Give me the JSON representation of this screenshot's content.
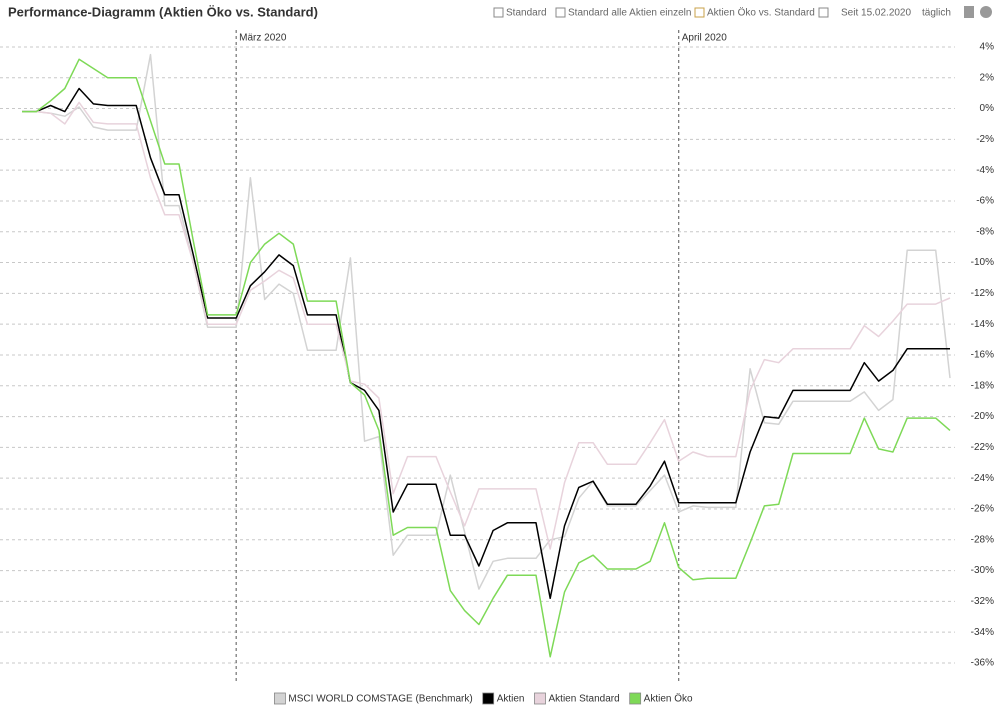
{
  "toolbar": {
    "items": [
      "Standard",
      "Standard alle Aktien einzeln",
      "Aktien Öko vs. Standard",
      "Seit 15.02.2020",
      "täglich"
    ]
  },
  "chart_data": {
    "type": "line",
    "title": "Performance-Diagramm (Aktien Öko vs. Standard)",
    "categories": [
      null,
      null,
      null,
      null,
      null,
      null,
      null,
      null,
      null,
      null,
      null,
      null,
      null,
      null,
      null,
      "März 2020",
      null,
      null,
      null,
      null,
      null,
      null,
      null,
      null,
      null,
      null,
      null,
      null,
      null,
      null,
      null,
      null,
      null,
      null,
      null,
      null,
      null,
      null,
      null,
      null,
      null,
      null,
      null,
      null,
      null,
      null,
      "April 2020",
      null,
      null,
      null,
      null,
      null,
      null,
      null,
      null,
      null,
      null,
      null,
      null,
      null,
      null,
      null,
      null,
      null,
      null,
      null
    ],
    "ylim": [
      -37.3,
      5.1
    ],
    "yticks": [
      {
        "value": 4,
        "label": "4%"
      },
      {
        "value": 2,
        "label": "2%"
      },
      {
        "value": 0,
        "label": "0%"
      },
      {
        "value": -2,
        "label": "-2%"
      },
      {
        "value": -4,
        "label": "-4%"
      },
      {
        "value": -6,
        "label": "-6%"
      },
      {
        "value": -8,
        "label": "-8%"
      },
      {
        "value": -10,
        "label": "-10%"
      },
      {
        "value": -12,
        "label": "-12%"
      },
      {
        "value": -14,
        "label": "-14%"
      },
      {
        "value": -16,
        "label": "-16%"
      },
      {
        "value": -18,
        "label": "-18%"
      },
      {
        "value": -20,
        "label": "-20%"
      },
      {
        "value": -22,
        "label": "-22%"
      },
      {
        "value": -24,
        "label": "-24%"
      },
      {
        "value": -26,
        "label": "-26%"
      },
      {
        "value": -28,
        "label": "-28%"
      },
      {
        "value": -30,
        "label": "-30%"
      },
      {
        "value": -32,
        "label": "-32%"
      },
      {
        "value": -34,
        "label": "-34%"
      },
      {
        "value": -36,
        "label": "-36%"
      }
    ],
    "grid": true,
    "series": [
      {
        "name": "MSCI WORLD COMSTAGE (Benchmark)",
        "color": "#d3d3d3",
        "values": [
          -0.2,
          -0.2,
          -0.3,
          -0.5,
          0.1,
          -1.2,
          -1.4,
          -1.4,
          -1.4,
          3.5,
          -6.3,
          -6.3,
          -10,
          -14.2,
          -14.2,
          -14.2,
          -4.5,
          -12.4,
          -11.4,
          -12.0,
          -15.7,
          -15.7,
          -15.7,
          -9.7,
          -21.6,
          -21.3,
          -29.0,
          -27.7,
          -27.7,
          -27.7,
          -23.8,
          -27.5,
          -31.2,
          -29.4,
          -29.2,
          -29.2,
          -29.2,
          -28.0,
          -27.8,
          -25.3,
          -24.2,
          -25.8,
          -25.8,
          -25.8,
          -24.8,
          -23.8,
          -26.2,
          -25.8,
          -25.9,
          -25.9,
          -25.9,
          -16.9,
          -20.4,
          -20.5,
          -19.0,
          -19.0,
          -19.0,
          -19.0,
          -19.0,
          -18.4,
          -19.6,
          -18.9,
          -9.2,
          -9.2,
          -9.2,
          -17.5
        ]
      },
      {
        "name": "Aktien",
        "color": "#000000",
        "values": [
          -0.2,
          -0.2,
          0.2,
          -0.2,
          1.3,
          0.3,
          0.2,
          0.2,
          0.2,
          -3.2,
          -5.6,
          -5.6,
          -9.5,
          -13.6,
          -13.6,
          -13.6,
          -11.5,
          -10.6,
          -9.5,
          -10.2,
          -13.4,
          -13.4,
          -13.4,
          -17.8,
          -18.3,
          -19.6,
          -26.2,
          -24.4,
          -24.4,
          -24.4,
          -27.7,
          -27.7,
          -29.7,
          -27.4,
          -26.9,
          -26.9,
          -26.9,
          -31.8,
          -27.1,
          -24.6,
          -24.2,
          -25.7,
          -25.7,
          -25.7,
          -24.5,
          -22.9,
          -25.6,
          -25.6,
          -25.6,
          -25.6,
          -25.6,
          -22.3,
          -20.0,
          -20.1,
          -18.3,
          -18.3,
          -18.3,
          -18.3,
          -18.3,
          -16.5,
          -17.7,
          -17.0,
          -15.6,
          -15.6,
          -15.6,
          -15.6
        ]
      },
      {
        "name": "Aktien Standard",
        "color": "#e8d3dc",
        "values": [
          -0.2,
          -0.2,
          -0.3,
          -1.0,
          0.4,
          -0.9,
          -1.0,
          -1.0,
          -1.0,
          -4.5,
          -6.9,
          -6.9,
          -10.0,
          -14.0,
          -14.0,
          -14.0,
          -11.8,
          -11.2,
          -10.5,
          -11.0,
          -14.0,
          -14.0,
          -14.0,
          -17.7,
          -17.9,
          -18.8,
          -25.0,
          -22.6,
          -22.6,
          -22.6,
          -24.9,
          -27.1,
          -24.7,
          -24.7,
          -24.7,
          -24.7,
          -24.7,
          -28.6,
          -24.3,
          -21.7,
          -21.7,
          -23.1,
          -23.1,
          -23.1,
          -21.7,
          -20.2,
          -22.9,
          -22.3,
          -22.6,
          -22.6,
          -22.6,
          -18.3,
          -16.3,
          -16.5,
          -15.6,
          -15.6,
          -15.6,
          -15.6,
          -15.6,
          -14.1,
          -14.8,
          -13.8,
          -12.7,
          -12.7,
          -12.7,
          -12.3
        ]
      },
      {
        "name": "Aktien Öko",
        "color": "#7ed957",
        "values": [
          -0.2,
          -0.2,
          0.5,
          1.3,
          3.2,
          2.6,
          2.0,
          2.0,
          2.0,
          -0.8,
          -3.6,
          -3.6,
          -8.6,
          -13.4,
          -13.4,
          -13.4,
          -10.0,
          -8.8,
          -8.1,
          -8.8,
          -12.5,
          -12.5,
          -12.5,
          -17.8,
          -18.6,
          -20.9,
          -27.7,
          -27.2,
          -27.2,
          -27.2,
          -31.3,
          -32.6,
          -33.5,
          -31.8,
          -30.3,
          -30.3,
          -30.3,
          -35.6,
          -31.4,
          -29.5,
          -29.0,
          -29.9,
          -29.9,
          -29.9,
          -29.4,
          -26.9,
          -29.8,
          -30.6,
          -30.5,
          -30.5,
          -30.5,
          -28.2,
          -25.8,
          -25.7,
          -22.4,
          -22.4,
          -22.4,
          -22.4,
          -22.4,
          -20.1,
          -22.1,
          -22.3,
          -20.1,
          -20.1,
          -20.1,
          -20.9
        ]
      }
    ]
  }
}
